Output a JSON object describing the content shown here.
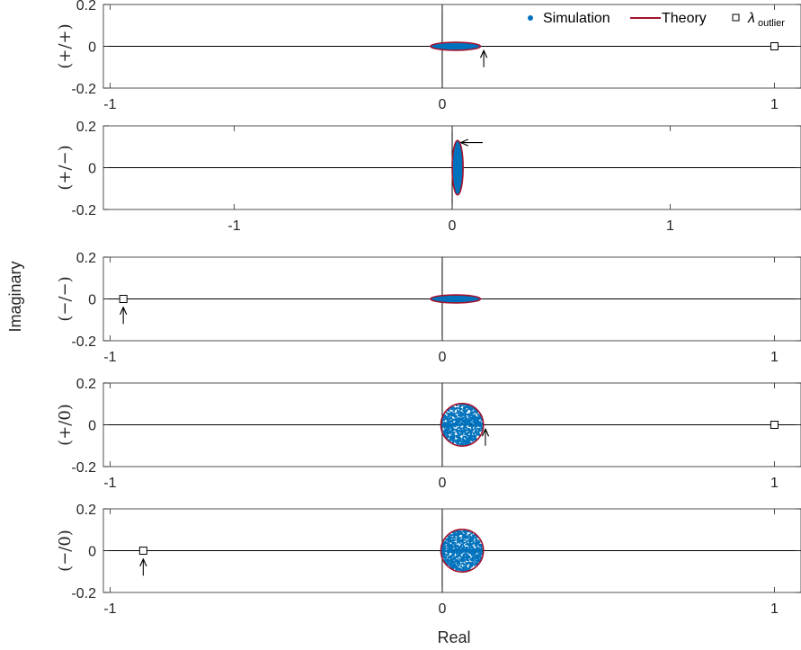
{
  "chart_data": {
    "type": "scatter",
    "xlabel": "Real",
    "ylabel": "Imaginary",
    "legend": {
      "placement": "top-right",
      "entries": [
        {
          "key": "simulation",
          "label": "Simulation",
          "marker": "dot"
        },
        {
          "key": "theory",
          "label": "Theory",
          "marker": "line"
        },
        {
          "key": "outlier",
          "label": "λ",
          "sub": "outlier",
          "marker": "square"
        }
      ]
    },
    "colors": {
      "simulation": "#0072BD",
      "theory": "#A2142F",
      "axes": "#262626",
      "zero_line": "#000000"
    },
    "grid": false,
    "panels": [
      {
        "label": "(+/+)",
        "xlim": [
          -1.02,
          1.08
        ],
        "ylim": [
          -0.2,
          0.2
        ],
        "xticks": [
          -1,
          0,
          1
        ],
        "xticklabels": [
          "-1",
          "0",
          "1"
        ],
        "yticks": [
          0.2,
          0,
          -0.2
        ],
        "yticklabels": [
          "0.2",
          "0",
          "-0.2"
        ],
        "bulk": {
          "shape": "ellipse",
          "center": [
            0.04,
            0
          ],
          "rx": 0.075,
          "ry": 0.019,
          "filled": true
        },
        "outlier": [
          1.0,
          0
        ],
        "arrow": {
          "tip": [
            0.125,
            -0.02
          ],
          "tail": [
            0.125,
            -0.1
          ]
        },
        "show_legend": true
      },
      {
        "label": "(+/−)",
        "xlim": [
          -1.6,
          1.6
        ],
        "ylim": [
          -0.2,
          0.2
        ],
        "xticks": [
          -1,
          0,
          1
        ],
        "xticklabels": [
          "-1",
          "0",
          "1"
        ],
        "yticks": [
          0.2,
          0,
          -0.2
        ],
        "yticklabels": [
          "0.2",
          "0",
          "-0.2"
        ],
        "bulk": {
          "shape": "ellipse",
          "center": [
            0.025,
            0
          ],
          "rx": 0.025,
          "ry": 0.13,
          "filled": true
        },
        "arrow": {
          "tip": [
            0.04,
            0.12
          ],
          "tail": [
            0.14,
            0.12
          ]
        }
      },
      {
        "label": "(−/−)",
        "xlim": [
          -1.02,
          1.08
        ],
        "ylim": [
          -0.2,
          0.2
        ],
        "xticks": [
          -1,
          0,
          1
        ],
        "xticklabels": [
          "-1",
          "0",
          "1"
        ],
        "yticks": [
          0.2,
          0,
          -0.2
        ],
        "yticklabels": [
          "0.2",
          "0",
          "-0.2"
        ],
        "bulk": {
          "shape": "ellipse",
          "center": [
            0.04,
            0
          ],
          "rx": 0.075,
          "ry": 0.019,
          "filled": true
        },
        "outlier": [
          -0.96,
          0
        ],
        "arrow": {
          "tip": [
            -0.96,
            -0.04
          ],
          "tail": [
            -0.96,
            -0.12
          ]
        }
      },
      {
        "label": "(+/0)",
        "xlim": [
          -1.02,
          1.08
        ],
        "ylim": [
          -0.2,
          0.2
        ],
        "xticks": [
          -1,
          0,
          1
        ],
        "xticklabels": [
          "-1",
          "0",
          "1"
        ],
        "yticks": [
          0.2,
          0,
          -0.2
        ],
        "yticklabels": [
          "0.2",
          "0",
          "-0.2"
        ],
        "bulk": {
          "shape": "circle",
          "center": [
            0.06,
            0
          ],
          "r": 0.064,
          "filled": false
        },
        "outlier": [
          1.0,
          0
        ],
        "arrow": {
          "tip": [
            0.13,
            -0.02
          ],
          "tail": [
            0.13,
            -0.1
          ]
        }
      },
      {
        "label": "(−/0)",
        "xlim": [
          -1.02,
          1.08
        ],
        "ylim": [
          -0.2,
          0.2
        ],
        "xticks": [
          -1,
          0,
          1
        ],
        "xticklabels": [
          "-1",
          "0",
          "1"
        ],
        "yticks": [
          0.2,
          0,
          -0.2
        ],
        "yticklabels": [
          "0.2",
          "0",
          "-0.2"
        ],
        "bulk": {
          "shape": "circle",
          "center": [
            0.06,
            0
          ],
          "r": 0.064,
          "filled": false
        },
        "outlier": [
          -0.9,
          0
        ],
        "arrow": {
          "tip": [
            -0.9,
            -0.04
          ],
          "tail": [
            -0.9,
            -0.12
          ]
        }
      }
    ]
  }
}
